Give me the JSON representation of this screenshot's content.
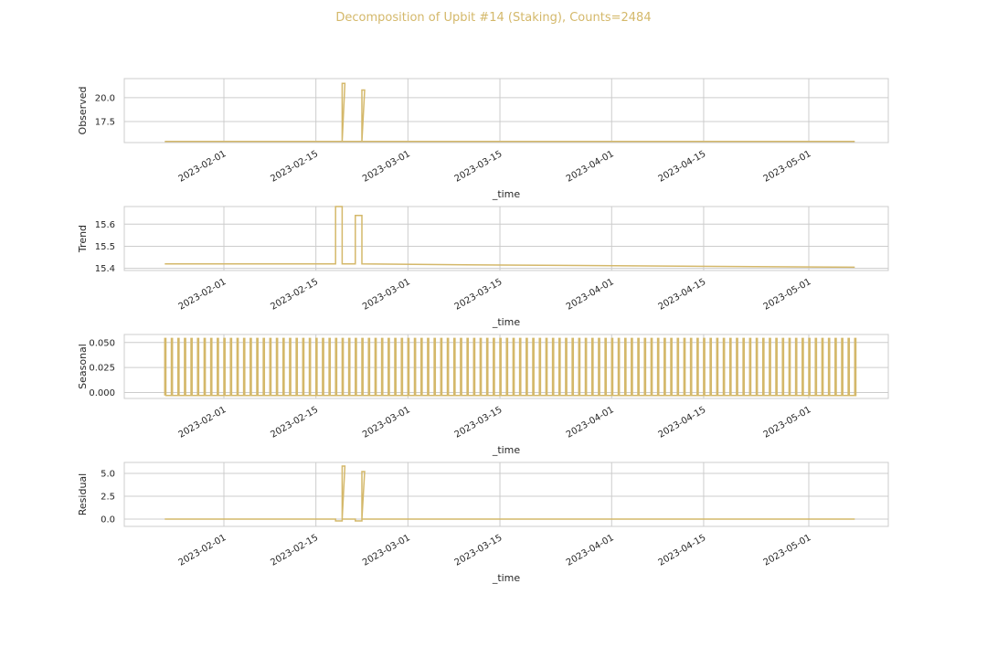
{
  "title": "Decomposition of Upbit #14 (Staking), Counts=2484",
  "colors": {
    "line": "#d4b86a",
    "grid": "#cccccc",
    "frame": "#cccccc",
    "title": "#d4b86a"
  },
  "x_ticks": [
    "2023-02-01",
    "2023-02-15",
    "2023-03-01",
    "2023-03-15",
    "2023-04-01",
    "2023-04-15",
    "2023-05-01"
  ],
  "chart_data": [
    {
      "type": "line",
      "ylabel": "Observed",
      "xlabel": "_time",
      "ylim": [
        15.3,
        22.0
      ],
      "yticks": [
        17.5,
        20.0
      ],
      "ytick_labels": [
        "17.5",
        "20.0"
      ],
      "series": [
        {
          "x": [
            "2023-01-23",
            "2023-02-19",
            "2023-02-19",
            "2023-02-19",
            "2023-02-19",
            "2023-02-22",
            "2023-02-22",
            "2023-02-22",
            "2023-02-22",
            "2023-05-08"
          ],
          "y": [
            15.42,
            15.42,
            21.5,
            21.5,
            15.42,
            15.42,
            20.8,
            20.8,
            15.42,
            15.42
          ]
        }
      ]
    },
    {
      "type": "line",
      "ylabel": "Trend",
      "xlabel": "_time",
      "ylim": [
        15.39,
        15.68
      ],
      "yticks": [
        15.4,
        15.5,
        15.6
      ],
      "ytick_labels": [
        "15.4",
        "15.5",
        "15.6"
      ],
      "series": [
        {
          "x": [
            "2023-01-23",
            "2023-02-18",
            "2023-02-18",
            "2023-02-19",
            "2023-02-19",
            "2023-02-21",
            "2023-02-21",
            "2023-02-22",
            "2023-02-22",
            "2023-03-15",
            "2023-05-08"
          ],
          "y": [
            15.42,
            15.42,
            15.68,
            15.68,
            15.42,
            15.42,
            15.64,
            15.64,
            15.42,
            15.415,
            15.405
          ]
        }
      ]
    },
    {
      "type": "line",
      "ylabel": "Seasonal",
      "xlabel": "_time",
      "ylim": [
        -0.006,
        0.058
      ],
      "yticks": [
        0.0,
        0.025,
        0.05
      ],
      "ytick_labels": [
        "0.000",
        "0.025",
        "0.050"
      ],
      "series": [
        {
          "pattern": "daily spike",
          "low": -0.003,
          "high": 0.054,
          "x_start": "2023-01-23",
          "x_end": "2023-05-08"
        }
      ]
    },
    {
      "type": "line",
      "ylabel": "Residual",
      "xlabel": "_time",
      "ylim": [
        -0.8,
        6.2
      ],
      "yticks": [
        0.0,
        2.5,
        5.0
      ],
      "ytick_labels": [
        "0.0",
        "2.5",
        "5.0"
      ],
      "series": [
        {
          "x": [
            "2023-01-23",
            "2023-02-18",
            "2023-02-18",
            "2023-02-19",
            "2023-02-19",
            "2023-02-19",
            "2023-02-19",
            "2023-02-21",
            "2023-02-21",
            "2023-02-22",
            "2023-02-22",
            "2023-02-22",
            "2023-02-22",
            "2023-05-08"
          ],
          "y": [
            0,
            0,
            -0.2,
            -0.2,
            5.8,
            5.8,
            0,
            0,
            -0.2,
            -0.2,
            5.2,
            5.2,
            0,
            0
          ]
        }
      ]
    }
  ]
}
